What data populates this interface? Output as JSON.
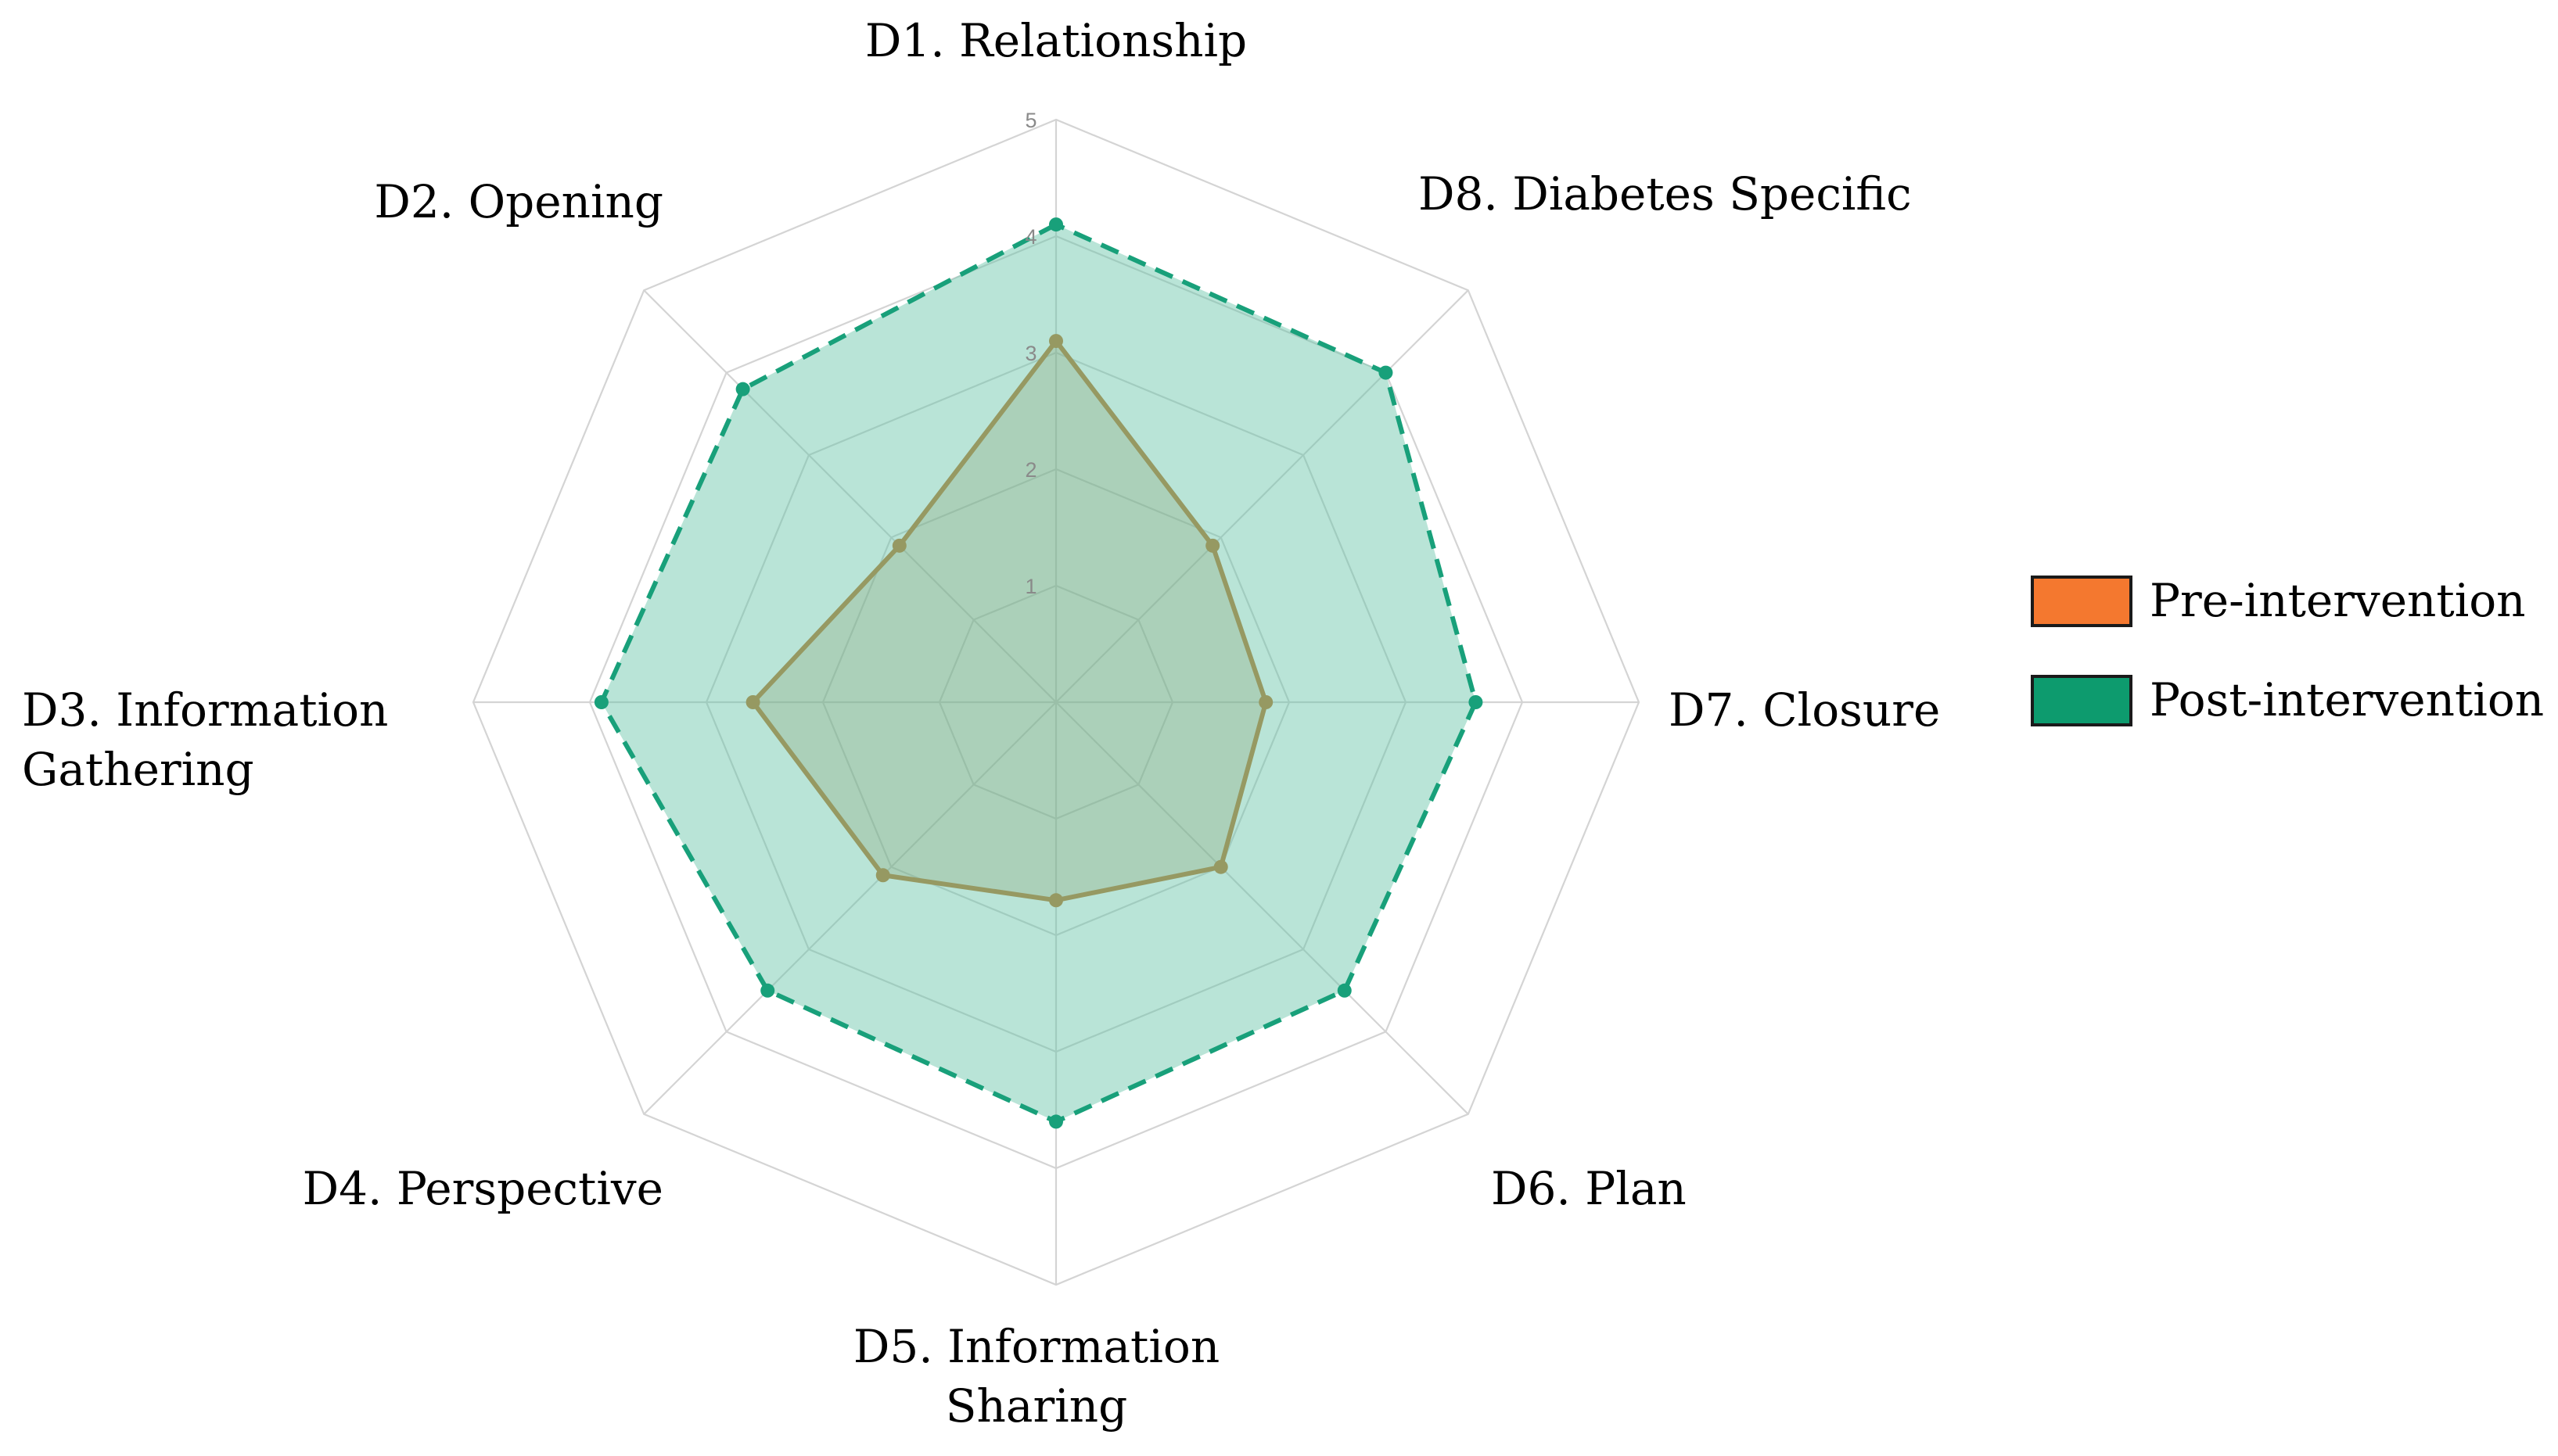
{
  "chart_data": {
    "type": "radar",
    "axes": [
      "D1. Relationship",
      "D2. Opening",
      "D3. Information Gathering",
      "D4. Perspective",
      "D5. Information Sharing",
      "D6. Plan",
      "D7. Closure",
      "D8. Diabetes Specific"
    ],
    "axis_label_lines": [
      [
        "D1. Relationship"
      ],
      [
        "D2. Opening"
      ],
      [
        "D3. Information",
        "Gathering"
      ],
      [
        "D4. Perspective"
      ],
      [
        "D5. Information",
        "Sharing"
      ],
      [
        "D6. Plan"
      ],
      [
        "D7. Closure"
      ],
      [
        "D8. Diabetes Specific"
      ]
    ],
    "rlim": [
      0,
      5
    ],
    "ticks": [
      "1",
      "2",
      "3",
      "4",
      "5"
    ],
    "grid": true,
    "legend_position": "right",
    "series": [
      {
        "name": "Pre-intervention",
        "values": [
          3.1,
          1.9,
          2.6,
          2.1,
          1.7,
          2.0,
          1.8,
          1.9
        ],
        "color": "#c0772b",
        "legend_color": "#f4782f",
        "line_style": "solid"
      },
      {
        "name": "Post-intervention",
        "values": [
          4.1,
          3.8,
          3.9,
          3.5,
          3.6,
          3.5,
          3.6,
          4.0
        ],
        "color": "#18a07a",
        "legend_color": "#0d9b6e",
        "fill_color": "#63c4a6",
        "line_style": "dashed"
      }
    ]
  }
}
